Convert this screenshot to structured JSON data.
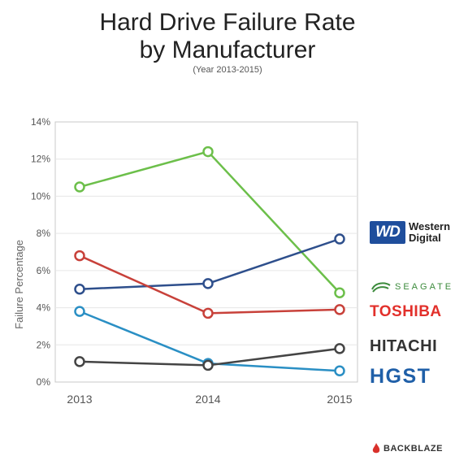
{
  "title_line1": "Hard Drive Failure Rate",
  "title_line2": "by Manufacturer",
  "subtitle": "(Year 2013-2015)",
  "legend_logos": {
    "wd_mark": "WD",
    "wd_line1": "Western",
    "wd_line2": "Digital",
    "seagate": "SEAGATE",
    "toshiba": "TOSHIBA",
    "hitachi": "HITACHI",
    "hgst": "HGST"
  },
  "footer_brand": "BACKBLAZE",
  "chart_data": {
    "type": "line",
    "title": "Hard Drive Failure Rate by Manufacturer",
    "subtitle": "(Year 2013-2015)",
    "xlabel": "",
    "ylabel": "Failure Percentage",
    "categories": [
      "2013",
      "2014",
      "2015"
    ],
    "ylim": [
      0,
      14
    ],
    "yticks": [
      0,
      2,
      4,
      6,
      8,
      10,
      12,
      14
    ],
    "ytick_labels": [
      "0%",
      "2%",
      "4%",
      "6%",
      "8%",
      "10%",
      "12%",
      "14%"
    ],
    "grid": "horizontal",
    "legend": "right, as logos",
    "series": [
      {
        "name": "SEAGATE",
        "color": "#6cbf4a",
        "values": [
          10.5,
          12.4,
          4.8
        ]
      },
      {
        "name": "Western Digital",
        "color": "#2e4f8c",
        "values": [
          5.0,
          5.3,
          7.7
        ]
      },
      {
        "name": "TOSHIBA",
        "color": "#c8413a",
        "values": [
          6.8,
          3.7,
          3.9
        ]
      },
      {
        "name": "HGST",
        "color": "#2a8fc4",
        "values": [
          3.8,
          1.0,
          0.6
        ]
      },
      {
        "name": "HITACHI",
        "color": "#444444",
        "values": [
          1.1,
          0.9,
          1.8
        ]
      }
    ]
  }
}
